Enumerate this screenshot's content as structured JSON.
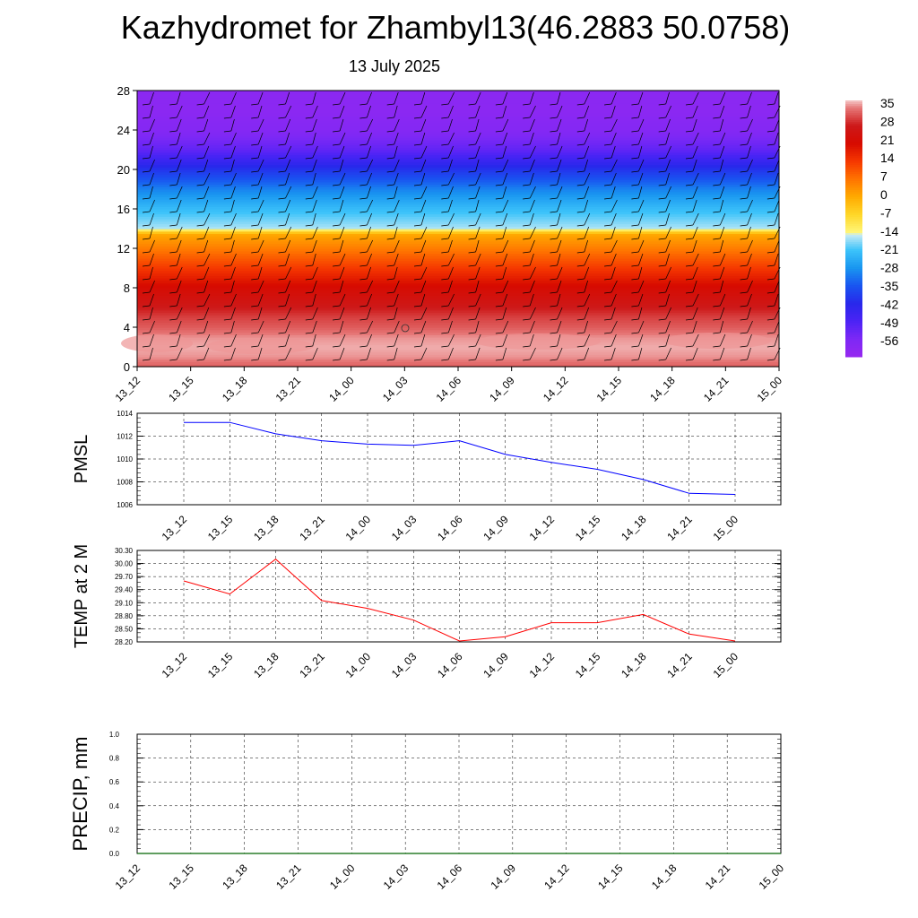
{
  "header": {
    "title": "Kazhydromet for Zhambyl13(46.2883 50.0758)",
    "date": "13 July 2025"
  },
  "time_labels": [
    "13_12",
    "13_15",
    "13_18",
    "13_21",
    "14_00",
    "14_03",
    "14_06",
    "14_09",
    "14_12",
    "14_15",
    "14_18",
    "14_21",
    "15_00"
  ],
  "colors": {
    "pmsl_line": "#0000ff",
    "temp_line": "#ff0000",
    "precip_line": "#006400",
    "wind_barb": "#000000"
  },
  "chart_data": [
    {
      "type": "heatmap",
      "title": "",
      "ylabel": "",
      "ylim": [
        0,
        28
      ],
      "y_ticks": [
        0,
        4,
        8,
        12,
        16,
        20,
        24,
        28
      ],
      "x": [
        "13_12",
        "13_15",
        "13_18",
        "13_21",
        "14_00",
        "14_03",
        "14_06",
        "14_09",
        "14_12",
        "14_15",
        "14_18",
        "14_21",
        "15_00"
      ],
      "colorbar": {
        "labels": [
          "35",
          "28",
          "21",
          "14",
          "7",
          "0",
          "-7",
          "-14",
          "-21",
          "-28",
          "-35",
          "-42",
          "-49",
          "-56"
        ],
        "min": -63,
        "max": 38
      },
      "temperature_profile": {
        "height": [
          0,
          1,
          2,
          3,
          4,
          5,
          6,
          8,
          10,
          12,
          13.5,
          14,
          16,
          18,
          20,
          22,
          24,
          26,
          28
        ],
        "value": [
          33,
          36,
          37,
          36,
          33,
          31,
          28,
          22,
          14,
          6,
          0,
          -16,
          -22,
          -30,
          -40,
          -52,
          -58,
          -60,
          -60
        ]
      },
      "wind_barbs": "present"
    },
    {
      "type": "line",
      "ylabel": "PMSL",
      "ylim": [
        1006,
        1014
      ],
      "y_ticks": [
        "1006",
        "1008",
        "1010",
        "1012",
        "1014"
      ],
      "categories": [
        "13_12",
        "13_15",
        "13_18",
        "13_21",
        "14_00",
        "14_03",
        "14_06",
        "14_09",
        "14_12",
        "14_15",
        "14_18",
        "14_21",
        "15_00"
      ],
      "series": [
        {
          "values": [
            1013.2,
            1013.2,
            1012.2,
            1011.6,
            1011.3,
            1011.2,
            1011.6,
            1010.4,
            1009.7,
            1009.1,
            1008.2,
            1007.0,
            1006.9
          ]
        }
      ]
    },
    {
      "type": "line",
      "ylabel": "TEMP at 2 M",
      "ylim": [
        28.2,
        30.3
      ],
      "y_ticks": [
        "28.20",
        "28.50",
        "28.80",
        "29.10",
        "29.40",
        "29.70",
        "30.00",
        "30.30"
      ],
      "categories": [
        "13_12",
        "13_15",
        "13_18",
        "13_21",
        "14_00",
        "14_03",
        "14_06",
        "14_09",
        "14_12",
        "14_15",
        "14_18",
        "14_21",
        "15_00"
      ],
      "series": [
        {
          "values": [
            29.6,
            29.3,
            30.1,
            29.15,
            28.97,
            28.7,
            28.22,
            28.32,
            28.64,
            28.64,
            28.83,
            28.38,
            28.22
          ]
        }
      ]
    },
    {
      "type": "line",
      "ylabel": "PRECIP, mm",
      "ylim": [
        0,
        1
      ],
      "y_ticks": [
        "0.0",
        "0.2",
        "0.4",
        "0.6",
        "0.8",
        "1.0"
      ],
      "categories": [
        "13_12",
        "13_15",
        "13_18",
        "13_21",
        "14_00",
        "14_03",
        "14_06",
        "14_09",
        "14_12",
        "14_15",
        "14_18",
        "14_21",
        "15_00"
      ],
      "series": [
        {
          "values": [
            0,
            0,
            0,
            0,
            0,
            0,
            0,
            0,
            0,
            0,
            0,
            0,
            0
          ]
        }
      ]
    }
  ]
}
